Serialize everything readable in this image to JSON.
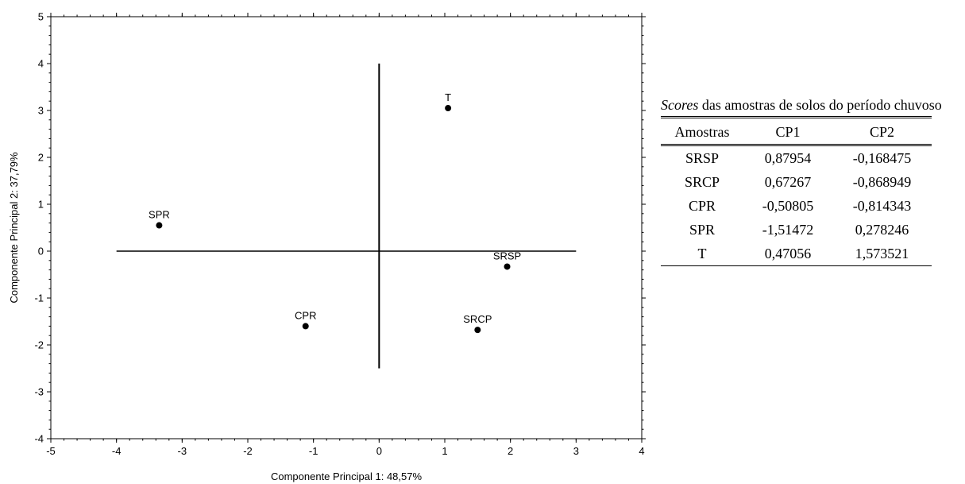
{
  "chart_data": {
    "type": "scatter",
    "xlabel": "Componente Principal 1: 48,57%",
    "ylabel": "Componente Principal 2: 37,79%",
    "xlim": [
      -5,
      4
    ],
    "ylim": [
      -4,
      5
    ],
    "xticks": [
      -5,
      -4,
      -3,
      -2,
      -1,
      0,
      1,
      2,
      3,
      4
    ],
    "yticks": [
      -4,
      -3,
      -2,
      -1,
      0,
      1,
      2,
      3,
      4,
      5
    ],
    "points": [
      {
        "label": "T",
        "x": 1.05,
        "y": 3.05
      },
      {
        "label": "SPR",
        "x": -3.35,
        "y": 0.55
      },
      {
        "label": "SRSP",
        "x": 1.95,
        "y": -0.33
      },
      {
        "label": "CPR",
        "x": -1.12,
        "y": -1.6
      },
      {
        "label": "SRCP",
        "x": 1.5,
        "y": -1.68
      }
    ],
    "reference_lines": {
      "horizontal": {
        "y": 0,
        "x_from": -4,
        "x_to": 3
      },
      "vertical": {
        "x": 0,
        "y_from": -2.5,
        "y_to": 4
      }
    },
    "grid": false,
    "legend": "none"
  },
  "table": {
    "caption_italic": "Scores",
    "caption_rest": " das amostras de solos do período chuvoso",
    "headers": [
      "Amostras",
      "CP1",
      "CP2"
    ],
    "rows": [
      [
        "SRSP",
        "0,87954",
        "-0,168475"
      ],
      [
        "SRCP",
        "0,67267",
        "-0,868949"
      ],
      [
        "CPR",
        "-0,50805",
        "-0,814343"
      ],
      [
        "SPR",
        "-1,51472",
        "0,278246"
      ],
      [
        "T",
        "0,47056",
        "1,573521"
      ]
    ]
  }
}
